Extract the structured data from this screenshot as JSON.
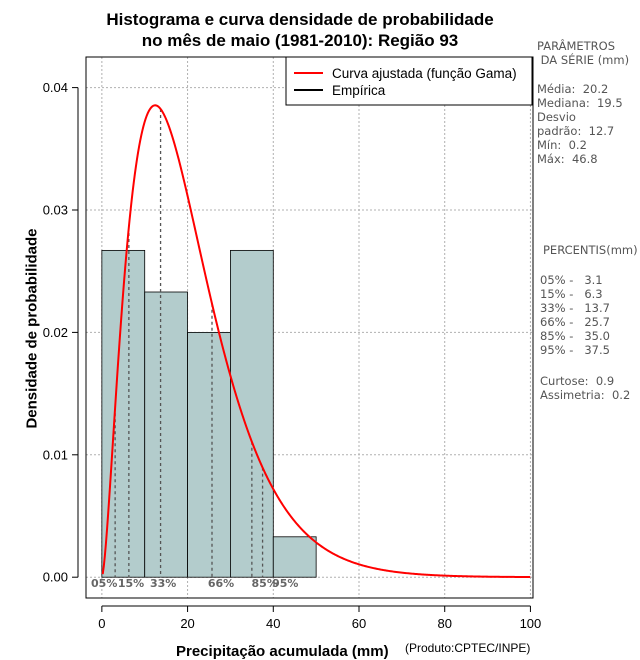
{
  "chart_data": {
    "type": "histogram",
    "title": [
      "Histograma e curva densidade de probabilidade",
      "no mês de maio (1981-2010): Região 93"
    ],
    "xlabel": "Precipitação acumulada (mm)",
    "ylabel": "Densidade de probabilidade",
    "credit": "(Produto:CPTEC/INPE)",
    "xlim": [
      0,
      100
    ],
    "ylim": [
      0,
      0.043
    ],
    "x_ticks": [
      0,
      20,
      40,
      60,
      80,
      100
    ],
    "y_ticks": [
      0.0,
      0.01,
      0.02,
      0.03,
      0.04
    ],
    "y_tick_labels": [
      "0.00",
      "0.01",
      "0.02",
      "0.03",
      "0.04"
    ],
    "grid": true,
    "bins": [
      {
        "start": 0,
        "end": 10,
        "density": 0.0267
      },
      {
        "start": 10,
        "end": 20,
        "density": 0.0233
      },
      {
        "start": 20,
        "end": 30,
        "density": 0.02
      },
      {
        "start": 30,
        "end": 40,
        "density": 0.0267
      },
      {
        "start": 40,
        "end": 50,
        "density": 0.0033
      }
    ],
    "gamma_fit": {
      "shape": 2.6,
      "scale": 7.77
    },
    "percentile_markers": [
      {
        "label": "05%",
        "x": 3.1
      },
      {
        "label": "15%",
        "x": 6.3
      },
      {
        "label": "33%",
        "x": 13.7
      },
      {
        "label": "66%",
        "x": 25.7
      },
      {
        "label": "85%",
        "x": 35.0
      },
      {
        "label": "95%",
        "x": 37.5
      }
    ],
    "legend": [
      {
        "label": "Curva ajustada (função Gama)",
        "color": "#ff0000"
      },
      {
        "label": "Empírica",
        "color": "#000000"
      }
    ],
    "colors": {
      "bar_fill": "#b3cccc",
      "curve": "#ff0000",
      "grid": "#b0b0b0",
      "marker": "#555555"
    }
  },
  "side_panel": {
    "params_title": "PARÂMETROS\n DA SÉRIE (mm)",
    "params_body": "Média:  20.2\nMediana:  19.5\nDesvio\npadrão:  12.7\nMín:  0.2\nMáx:  46.8",
    "percentis_title": "PERCENTIS(mm)",
    "percentis_body": "05% -   3.1\n15% -   6.3\n33% -   13.7\n66% -   25.7\n85% -   35.0\n95% -   37.5",
    "stats_body": "Curtose:  0.9\nAssimetria:  0.2"
  }
}
